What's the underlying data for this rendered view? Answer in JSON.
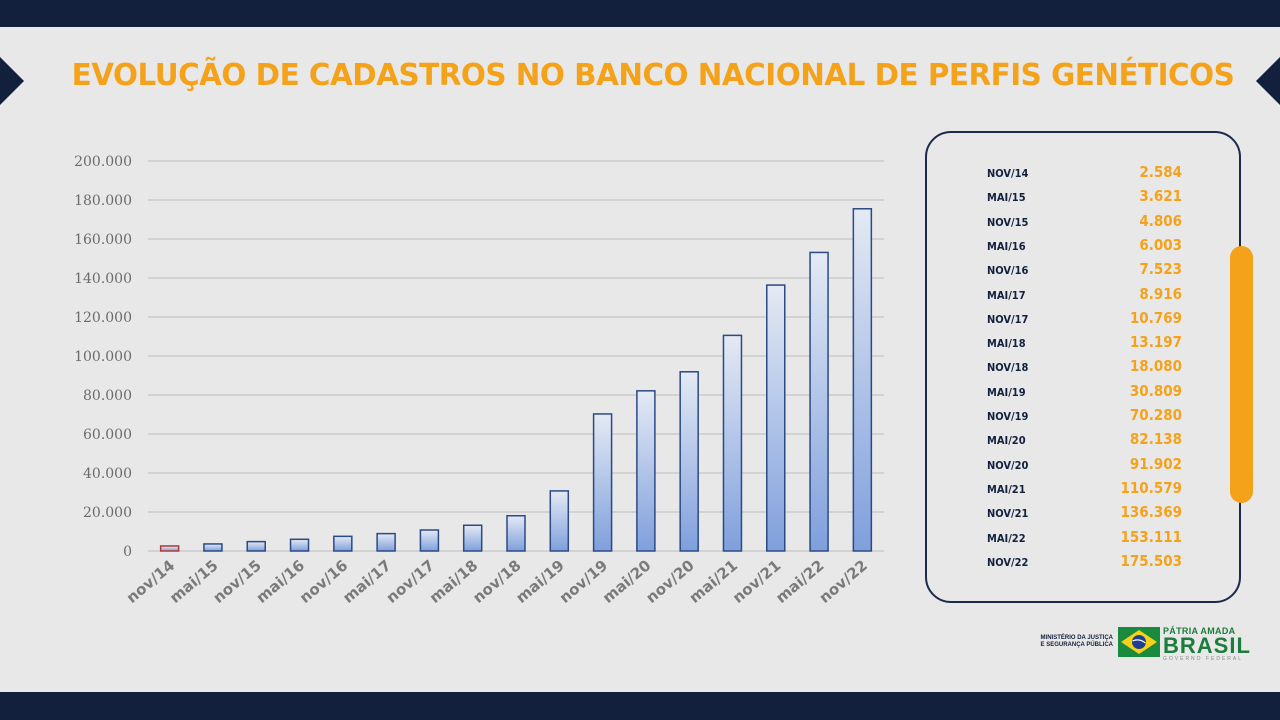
{
  "page": {
    "title": "EVOLUÇÃO DE CADASTROS NO BANCO NACIONAL DE PERFIS GENÉTICOS",
    "footer": {
      "ministry": "MINISTÉRIO DA JUSTIÇA E SEGURANÇA PÚBLICA",
      "slogan_top": "PÁTRIA AMADA",
      "slogan_main": "BRASIL",
      "slogan_sub": "GOVERNO FEDERAL"
    }
  },
  "colors": {
    "navy": "#13203d",
    "orange": "#f5a21b",
    "bar_fill_top": "#e4eaf4",
    "bar_fill_bottom": "#7f9fdc",
    "bar_stroke": "#2b4a84",
    "first_bar_stroke": "#b03a36"
  },
  "chart_data": {
    "type": "bar",
    "categories": [
      "nov/14",
      "mai/15",
      "nov/15",
      "mai/16",
      "nov/16",
      "mai/17",
      "nov/17",
      "mai/18",
      "nov/18",
      "mai/19",
      "nov/19",
      "mai/20",
      "nov/20",
      "mai/21",
      "nov/21",
      "mai/22",
      "nov/22"
    ],
    "values": [
      2584,
      3621,
      4806,
      6003,
      7523,
      8916,
      10769,
      13197,
      18080,
      30809,
      70280,
      82138,
      91902,
      110579,
      136369,
      153111,
      175503
    ],
    "yticks": [
      "0",
      "20.000",
      "40.000",
      "60.000",
      "80.000",
      "100.000",
      "120.000",
      "140.000",
      "160.000",
      "180.000",
      "200.000"
    ],
    "ylim": [
      0,
      200000
    ],
    "grid": true,
    "title": "",
    "xlabel": "",
    "ylabel": ""
  },
  "table": {
    "rows": [
      {
        "label": "NOV/14",
        "value": "2.584"
      },
      {
        "label": "MAI/15",
        "value": "3.621"
      },
      {
        "label": "NOV/15",
        "value": "4.806"
      },
      {
        "label": "MAI/16",
        "value": "6.003"
      },
      {
        "label": "NOV/16",
        "value": "7.523"
      },
      {
        "label": "MAI/17",
        "value": "8.916"
      },
      {
        "label": "NOV/17",
        "value": "10.769"
      },
      {
        "label": "MAI/18",
        "value": "13.197"
      },
      {
        "label": "NOV/18",
        "value": "18.080"
      },
      {
        "label": "MAI/19",
        "value": "30.809"
      },
      {
        "label": "NOV/19",
        "value": "70.280"
      },
      {
        "label": "MAI/20",
        "value": "82.138"
      },
      {
        "label": "NOV/20",
        "value": "91.902"
      },
      {
        "label": "MAI/21",
        "value": "110.579"
      },
      {
        "label": "NOV/21",
        "value": "136.369"
      },
      {
        "label": "MAI/22",
        "value": "153.111"
      },
      {
        "label": "NOV/22",
        "value": "175.503"
      }
    ]
  }
}
